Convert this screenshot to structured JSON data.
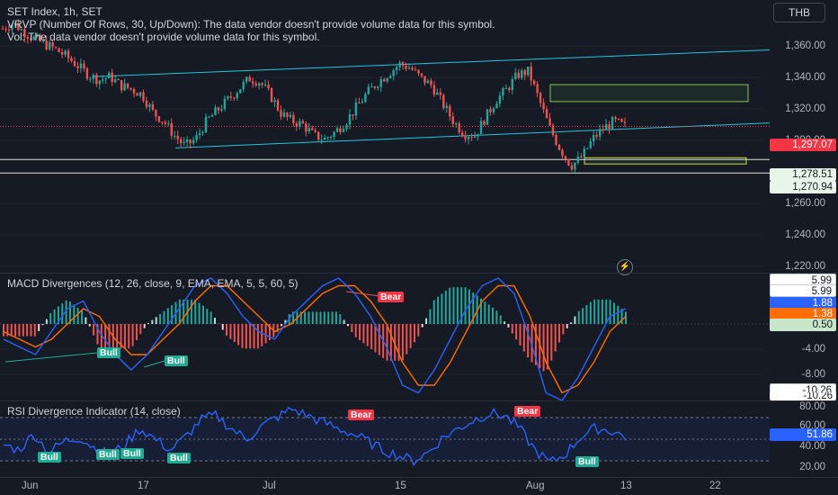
{
  "header": {
    "symbol_line": "SET Index, 1h, SET",
    "vrvp_line": "VRVP (Number Of Rows, 30, Up/Down): The data vendor doesn't provide volume data for this symbol.",
    "vol_line": "Vol: The data vendor doesn't provide volume data for this symbol.",
    "currency": "THB"
  },
  "price_axis": {
    "ticks": [
      "1,360.00",
      "1,340.00",
      "1,320.00",
      "1,300.00",
      "1,280.00",
      "1,260.00",
      "1,240.00",
      "1,220.00"
    ],
    "last_price": "1,297.07",
    "level_1": "1,278.51",
    "level_2": "1,270.94"
  },
  "macd": {
    "title": "MACD Divergences",
    "params": "(12, 26, close, 9, EMA, EMA, 5, 5, 60, 5)",
    "ticks": [
      "-4.00",
      "-8.00"
    ],
    "tags": [
      "5.99",
      "5.99",
      "1.88",
      "1.38",
      "0.50",
      "-10.26",
      "-10.26"
    ],
    "signals": [
      "Bull",
      "Bull",
      "Bear"
    ]
  },
  "rsi": {
    "title": "RSI Divergence Indicator",
    "params": "(14, close)",
    "ticks": [
      "80.00",
      "60.00",
      "40.00",
      "20.00"
    ],
    "value": "51.86",
    "signals": [
      "Bull",
      "Bull",
      "Bull",
      "Bull",
      "Bear",
      "Bear"
    ]
  },
  "time_axis": [
    "Jun",
    "17",
    "Jul",
    "15",
    "Aug",
    "13",
    "22"
  ],
  "colors": {
    "up": "#26a69a",
    "down": "#ef5350",
    "macd": "#2962ff",
    "signal": "#ff6d00",
    "rsi": "#2962ff",
    "trend": "#26c6da",
    "zone": "#4caf50",
    "last": "#f23645"
  },
  "chart_data": [
    {
      "type": "candlestick",
      "title": "SET Index, 1h, SET",
      "ylim": [
        1215,
        1368
      ],
      "x": [
        "Jun",
        "17",
        "Jul",
        "15",
        "Aug",
        "13",
        "22"
      ],
      "close_path": [
        1352,
        1355,
        1350,
        1346,
        1343,
        1340,
        1336,
        1331,
        1326,
        1323,
        1325,
        1320,
        1318,
        1315,
        1305,
        1300,
        1292,
        1286,
        1290,
        1300,
        1306,
        1312,
        1318,
        1324,
        1322,
        1314,
        1304,
        1300,
        1298,
        1292,
        1290,
        1294,
        1300,
        1308,
        1316,
        1322,
        1327,
        1332,
        1330,
        1324,
        1320,
        1310,
        1300,
        1293,
        1292,
        1302,
        1312,
        1318,
        1326,
        1328,
        1312,
        1296,
        1284,
        1275,
        1280,
        1290,
        1296,
        1300,
        1297
      ],
      "last": 1297.07,
      "levels": [
        1278.51,
        1270.94
      ]
    },
    {
      "type": "line",
      "title": "MACD Divergences",
      "series": [
        {
          "name": "MACD",
          "values": [
            -2,
            -3,
            -4,
            -1,
            2,
            3,
            -1,
            -4,
            -6,
            -4,
            -1,
            2,
            5,
            6,
            4,
            1,
            -1,
            -2,
            1,
            3,
            5,
            6,
            4,
            1,
            -3,
            -8,
            -9,
            -6,
            -2,
            2,
            5,
            6,
            4,
            -2,
            -9,
            -10,
            -7,
            -3,
            1,
            2
          ]
        },
        {
          "name": "Signal",
          "values": [
            -1,
            -2,
            -3,
            -2,
            0,
            2,
            1,
            -2,
            -4,
            -4,
            -2,
            0,
            3,
            5,
            5,
            3,
            1,
            -1,
            0,
            2,
            4,
            5,
            5,
            3,
            0,
            -5,
            -8,
            -8,
            -5,
            -1,
            3,
            5,
            5,
            1,
            -5,
            -9,
            -8,
            -5,
            -1,
            1
          ]
        }
      ]
    },
    {
      "type": "line",
      "title": "RSI Divergence Indicator",
      "ylim": [
        15,
        85
      ],
      "series": [
        {
          "name": "RSI",
          "values": [
            45,
            40,
            55,
            38,
            48,
            52,
            42,
            35,
            45,
            60,
            50,
            40,
            52,
            68,
            72,
            60,
            50,
            62,
            70,
            78,
            72,
            66,
            60,
            55,
            48,
            40,
            35,
            30,
            38,
            52,
            60,
            68,
            74,
            72,
            60,
            40,
            28,
            36,
            52,
            60,
            58,
            52
          ]
        }
      ]
    }
  ]
}
